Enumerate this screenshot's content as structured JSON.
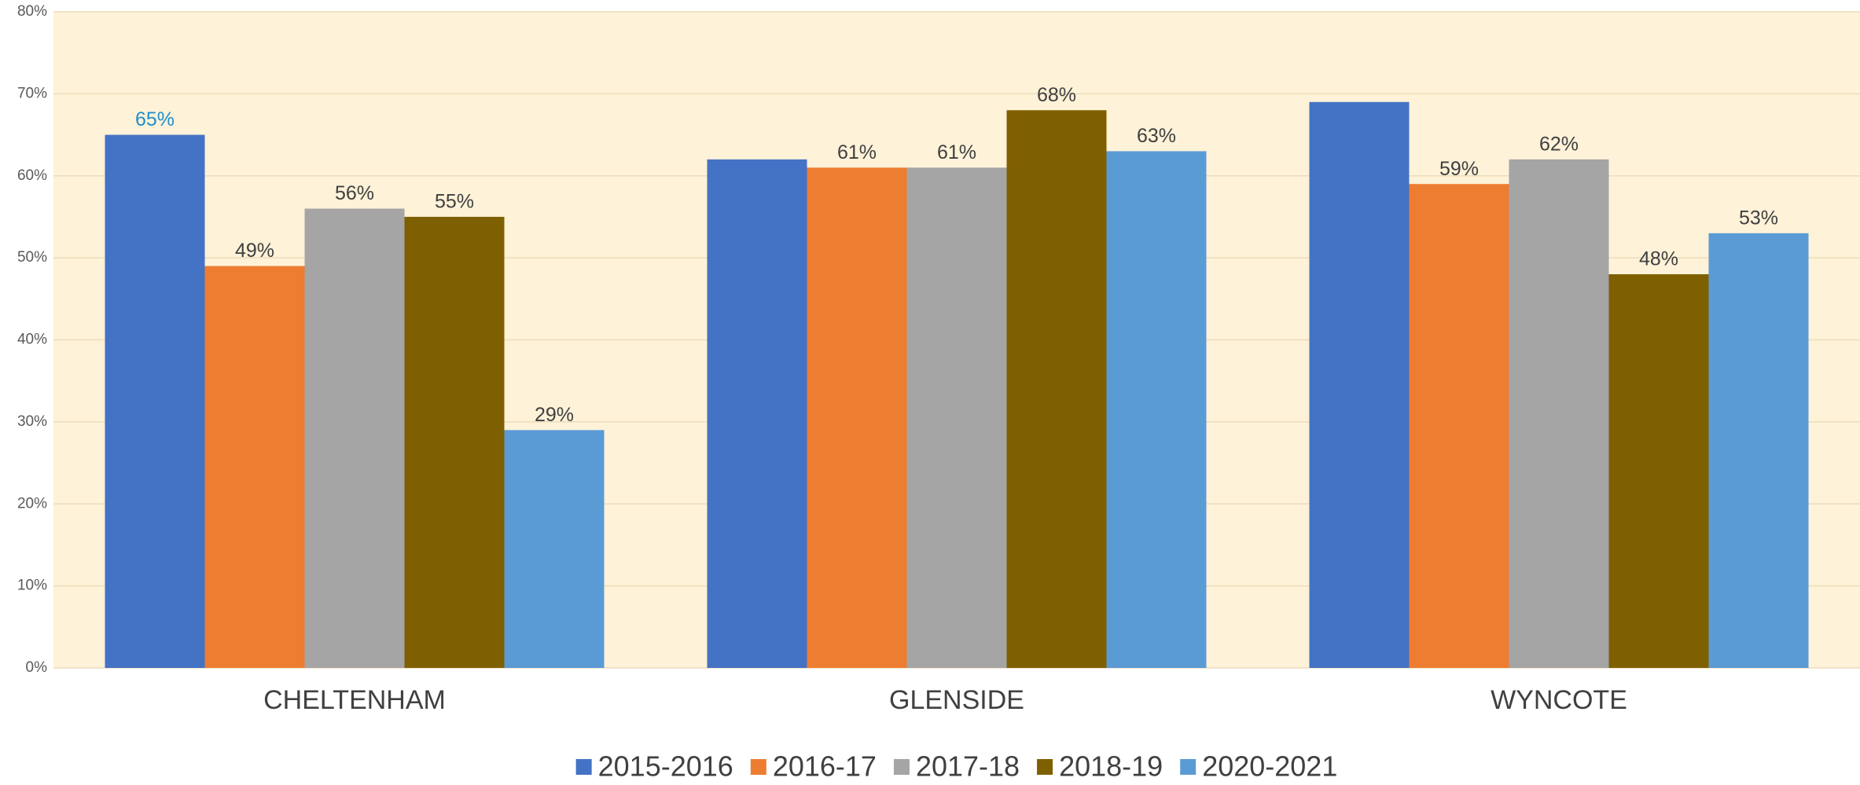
{
  "chart_data": {
    "type": "bar",
    "categories": [
      "CHELTENHAM",
      "GLENSIDE",
      "WYNCOTE"
    ],
    "series": [
      {
        "name": "2015-2016",
        "color": "#4472c4",
        "label_color": "#1f8fd0",
        "values": [
          65,
          62,
          69
        ],
        "value_labels": [
          "65%",
          null,
          null
        ]
      },
      {
        "name": "2016-17",
        "color": "#ed7d31",
        "label_color": "#404040",
        "values": [
          49,
          61,
          59
        ],
        "value_labels": [
          "49%",
          "61%",
          "59%"
        ]
      },
      {
        "name": "2017-18",
        "color": "#a5a5a5",
        "label_color": "#404040",
        "values": [
          56,
          61,
          62
        ],
        "value_labels": [
          "56%",
          "61%",
          "62%"
        ]
      },
      {
        "name": "2018-19",
        "color": "#7f6000",
        "label_color": "#404040",
        "values": [
          55,
          68,
          48
        ],
        "value_labels": [
          "55%",
          "68%",
          "48%"
        ]
      },
      {
        "name": "2020-2021",
        "color": "#5b9bd5",
        "label_color": "#404040",
        "values": [
          29,
          63,
          53
        ],
        "value_labels": [
          "29%",
          "63%",
          "53%"
        ]
      }
    ],
    "ylim": [
      0,
      80
    ],
    "yticks": [
      {
        "value": 0,
        "label": "0%"
      },
      {
        "value": 10,
        "label": "10%"
      },
      {
        "value": 20,
        "label": "20%"
      },
      {
        "value": 30,
        "label": "30%"
      },
      {
        "value": 40,
        "label": "40%"
      },
      {
        "value": 50,
        "label": "50%"
      },
      {
        "value": 60,
        "label": "60%"
      },
      {
        "value": 70,
        "label": "70%"
      },
      {
        "value": 80,
        "label": "80%"
      }
    ],
    "grid": true,
    "legend": "bottom",
    "plot_background": "#fef2d8"
  }
}
